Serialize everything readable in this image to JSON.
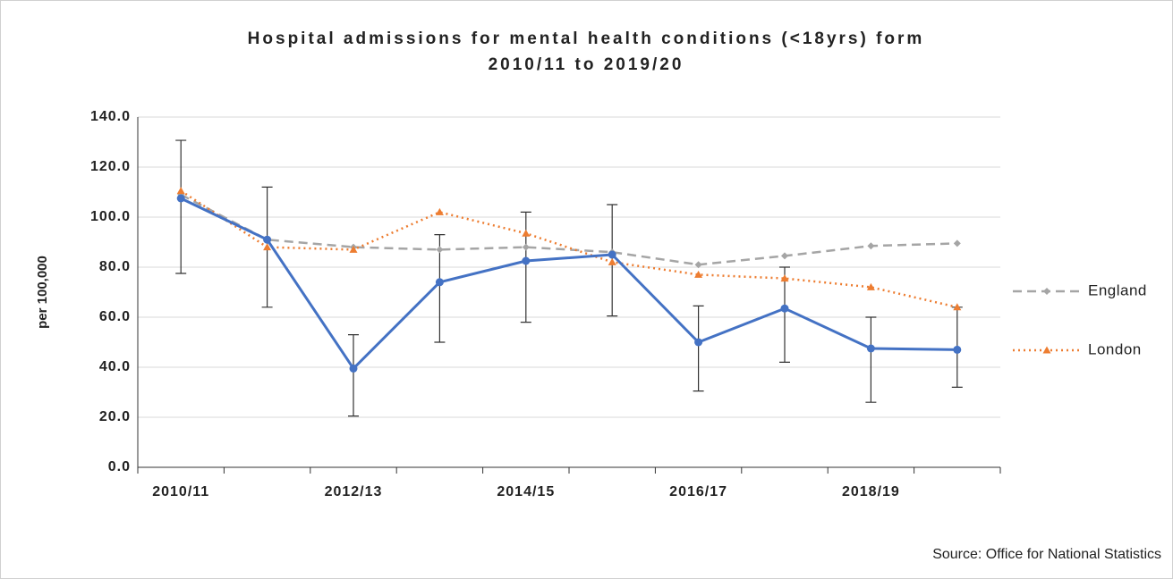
{
  "chart_data": {
    "type": "line",
    "title": [
      "Hospital admissions for mental health conditions (<18yrs) form",
      "2010/11 to 2019/20"
    ],
    "y_label": "per 100,000",
    "source": "Source: Office for National Statistics",
    "categories": [
      "2010/11",
      null,
      "2012/13",
      null,
      "2014/15",
      null,
      "2016/17",
      null,
      "2018/19",
      null
    ],
    "ylim": [
      0,
      140
    ],
    "yticks": [
      {
        "value": 0,
        "label": "0.0"
      },
      {
        "value": 20,
        "label": "20.0"
      },
      {
        "value": 40,
        "label": "40.0"
      },
      {
        "value": 60,
        "label": "60.0"
      },
      {
        "value": 80,
        "label": "80.0"
      },
      {
        "value": 100,
        "label": "100.0"
      },
      {
        "value": 120,
        "label": "120.0"
      },
      {
        "value": 140,
        "label": "140.0"
      }
    ],
    "grid": true,
    "legend": "right",
    "series": [
      {
        "name": "England",
        "color": "#a5a5a5",
        "dash": "dashed",
        "marker": "diamond",
        "values": [
          109,
          91,
          88,
          87,
          88,
          86,
          81,
          84.5,
          88.5,
          89.5
        ]
      },
      {
        "name": "London",
        "color": "#ed7d31",
        "dash": "dotted",
        "marker": "triangle",
        "values": [
          110.5,
          88,
          87,
          102,
          93.5,
          82,
          77,
          75.5,
          72,
          64
        ]
      },
      {
        "color": "#4472c4",
        "dash": "solid",
        "marker": "circle",
        "values": [
          107.5,
          91,
          39.5,
          74,
          82.5,
          85,
          50,
          63.5,
          47.5,
          47
        ],
        "error_minus": [
          30,
          27,
          19,
          24,
          24.5,
          24.5,
          19.5,
          21.5,
          21.5,
          15
        ],
        "error_plus": [
          23.2,
          21,
          13.5,
          19,
          19.5,
          20,
          14.5,
          16.5,
          12.5,
          17
        ]
      }
    ]
  }
}
